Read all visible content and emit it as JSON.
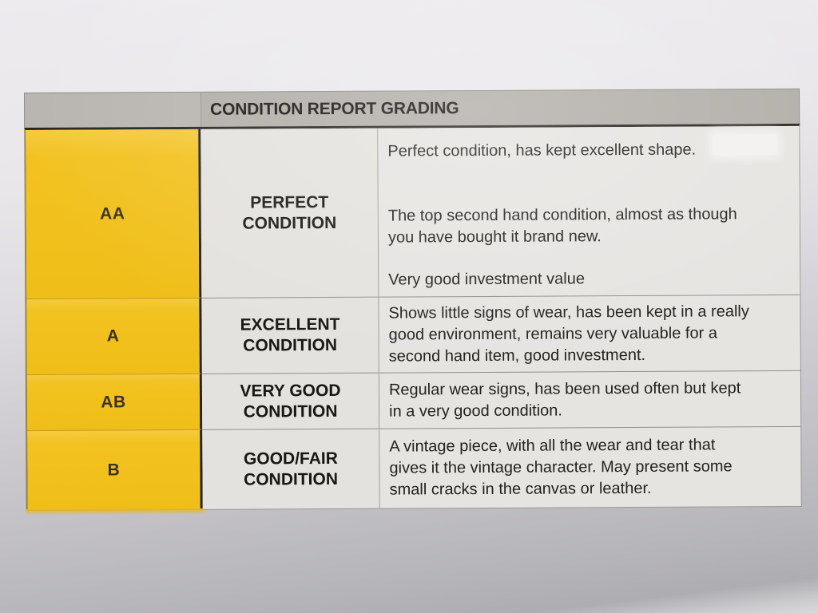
{
  "table": {
    "title": "CONDITION REPORT GRADING",
    "rows": [
      {
        "grade": "AA",
        "name": "PERFECT CONDITION",
        "paragraphs": [
          [
            "Perfect condition, has kept excellent shape."
          ],
          [
            "The top second hand condition, almost as though",
            "you have bought it brand new."
          ],
          [
            "Very good investment value"
          ]
        ]
      },
      {
        "grade": "A",
        "name": "EXCELLENT CONDITION",
        "paragraphs": [
          [
            "Shows little signs of wear, has been kept in a really",
            "good environment, remains very valuable for a",
            "second hand item, good investment."
          ]
        ]
      },
      {
        "grade": "AB",
        "name": "VERY GOOD CONDITION",
        "paragraphs": [
          [
            "Regular wear signs, has been used often but kept",
            "in a very good condition."
          ]
        ]
      },
      {
        "grade": "B",
        "name": "GOOD/FAIR CONDITION",
        "paragraphs": [
          [
            "A vintage piece, with all the wear and tear that",
            "gives it the vintage character. May present some",
            "small cracks in the canvas or leather."
          ]
        ]
      }
    ]
  },
  "colors": {
    "grade_yellow": "#f2c220",
    "header_gray": "#b1ada7",
    "cell_gray": "#e4e2de",
    "ink": "#1f1d19"
  }
}
